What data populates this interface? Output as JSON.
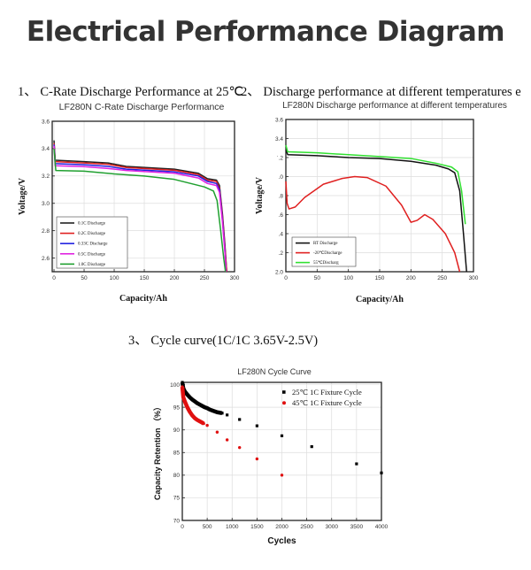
{
  "page_title": "Electrical Performance Diagram",
  "sections": [
    {
      "label": "1、 C-Rate Discharge Performance at 25℃"
    },
    {
      "label": "2、 Discharge performance at different temperatures e"
    },
    {
      "label": "3、 Cycle curve(1C/1C 3.65V-2.5V)"
    }
  ],
  "chart_data": [
    {
      "type": "line",
      "title": "LF280N C-Rate Discharge Performance",
      "xlabel": "Capacity/Ah",
      "ylabel": "Voltage/V",
      "xlim": [
        -3,
        300
      ],
      "ylim": [
        2.5,
        3.6
      ],
      "xticks": [
        "0",
        "50",
        "100",
        "150",
        "200",
        "250",
        "300"
      ],
      "xtick_values": [
        0,
        50,
        100,
        150,
        200,
        250,
        300
      ],
      "yticks": [
        "2.6",
        "2.8",
        "3.0",
        "3.2",
        "3.4",
        "3.6"
      ],
      "ytick_values": [
        2.6,
        2.8,
        3.0,
        3.2,
        3.4,
        3.6
      ],
      "grid": true,
      "legend_placement": "bottom-left",
      "series": [
        {
          "name": "0.1C  Discharge",
          "color": "#222222",
          "points": [
            [
              0,
              3.46
            ],
            [
              2,
              3.315
            ],
            [
              50,
              3.305
            ],
            [
              90,
              3.295
            ],
            [
              120,
              3.27
            ],
            [
              200,
              3.25
            ],
            [
              240,
              3.22
            ],
            [
              255,
              3.18
            ],
            [
              270,
              3.17
            ],
            [
              275,
              3.13
            ],
            [
              280,
              2.92
            ],
            [
              284,
              2.7
            ],
            [
              287,
              2.5
            ]
          ]
        },
        {
          "name": "0.2C  Discharge",
          "color": "#e02020",
          "points": [
            [
              0,
              3.44
            ],
            [
              2,
              3.305
            ],
            [
              50,
              3.295
            ],
            [
              90,
              3.285
            ],
            [
              120,
              3.262
            ],
            [
              200,
              3.242
            ],
            [
              240,
              3.21
            ],
            [
              255,
              3.17
            ],
            [
              270,
              3.16
            ],
            [
              275,
              3.11
            ],
            [
              280,
              2.9
            ],
            [
              284,
              2.68
            ],
            [
              287,
              2.5
            ]
          ]
        },
        {
          "name": "0.33C  Discharge",
          "color": "#2020e0",
          "points": [
            [
              0,
              3.43
            ],
            [
              2,
              3.29
            ],
            [
              50,
              3.282
            ],
            [
              90,
              3.27
            ],
            [
              120,
              3.25
            ],
            [
              200,
              3.23
            ],
            [
              240,
              3.2
            ],
            [
              255,
              3.16
            ],
            [
              270,
              3.145
            ],
            [
              275,
              3.1
            ],
            [
              280,
              2.88
            ],
            [
              284,
              2.66
            ],
            [
              286,
              2.5
            ]
          ]
        },
        {
          "name": "0.5C  Discharge",
          "color": "#e020e0",
          "points": [
            [
              0,
              3.42
            ],
            [
              2,
              3.275
            ],
            [
              50,
              3.268
            ],
            [
              90,
              3.255
            ],
            [
              120,
              3.24
            ],
            [
              200,
              3.22
            ],
            [
              240,
              3.185
            ],
            [
              255,
              3.145
            ],
            [
              270,
              3.13
            ],
            [
              275,
              3.08
            ],
            [
              280,
              2.86
            ],
            [
              284,
              2.64
            ],
            [
              286,
              2.5
            ]
          ]
        },
        {
          "name": "1.0C  Discharge",
          "color": "#20a030",
          "points": [
            [
              0,
              3.4
            ],
            [
              3,
              3.24
            ],
            [
              50,
              3.235
            ],
            [
              100,
              3.215
            ],
            [
              150,
              3.2
            ],
            [
              200,
              3.175
            ],
            [
              250,
              3.12
            ],
            [
              265,
              3.09
            ],
            [
              271,
              3.02
            ],
            [
              277,
              2.8
            ],
            [
              282,
              2.6
            ],
            [
              285,
              2.5
            ]
          ]
        }
      ]
    },
    {
      "type": "line",
      "title": "LF280N Discharge performance at different temperatures",
      "xlabel": "Capacity/Ah",
      "ylabel": "Voltage/V",
      "xlim": [
        0,
        300
      ],
      "ylim": [
        2.0,
        3.6
      ],
      "xticks": [
        "0",
        "50",
        "100",
        "150",
        "200",
        "250",
        "300"
      ],
      "xtick_values": [
        0,
        50,
        100,
        150,
        200,
        250,
        300
      ],
      "yticks": [
        "2.0",
        ".2",
        ".4",
        ".6",
        ".8",
        ".0",
        "ˈ.2",
        "3.4",
        "3.6"
      ],
      "ytick_values": [
        2.0,
        2.2,
        2.4,
        2.6,
        2.8,
        3.0,
        3.2,
        3.4,
        3.6
      ],
      "grid": true,
      "legend_placement": "bottom-left",
      "series": [
        {
          "name": "RT Discharge",
          "color": "#111111",
          "points": [
            [
              0,
              3.28
            ],
            [
              3,
              3.23
            ],
            [
              50,
              3.22
            ],
            [
              100,
              3.2
            ],
            [
              150,
              3.19
            ],
            [
              200,
              3.16
            ],
            [
              240,
              3.12
            ],
            [
              260,
              3.08
            ],
            [
              270,
              3.04
            ],
            [
              278,
              2.85
            ],
            [
              284,
              2.4
            ],
            [
              289,
              2.0
            ]
          ]
        },
        {
          "name": "-20℃Discharge",
          "color": "#e02020",
          "points": [
            [
              0,
              2.95
            ],
            [
              2,
              2.72
            ],
            [
              5,
              2.66
            ],
            [
              15,
              2.68
            ],
            [
              30,
              2.78
            ],
            [
              60,
              2.92
            ],
            [
              90,
              2.98
            ],
            [
              110,
              3.0
            ],
            [
              130,
              2.99
            ],
            [
              160,
              2.9
            ],
            [
              185,
              2.7
            ],
            [
              200,
              2.52
            ],
            [
              210,
              2.54
            ],
            [
              222,
              2.6
            ],
            [
              235,
              2.55
            ],
            [
              255,
              2.4
            ],
            [
              270,
              2.2
            ],
            [
              278,
              2.0
            ]
          ]
        },
        {
          "name": "55℃Discharg",
          "color": "#30e030",
          "points": [
            [
              0,
              3.33
            ],
            [
              3,
              3.26
            ],
            [
              50,
              3.25
            ],
            [
              100,
              3.23
            ],
            [
              150,
              3.21
            ],
            [
              200,
              3.19
            ],
            [
              240,
              3.14
            ],
            [
              265,
              3.1
            ],
            [
              275,
              3.05
            ],
            [
              281,
              2.85
            ],
            [
              287,
              2.5
            ]
          ]
        }
      ]
    },
    {
      "type": "scatter",
      "title": "LF280N Cycle Curve",
      "xlabel": "Cycles",
      "ylabel": "Capacity Retention （%）",
      "xlim": [
        0,
        4000
      ],
      "ylim": [
        70,
        100.5
      ],
      "xticks": [
        "0",
        "500",
        "1000",
        "1500",
        "2000",
        "2500",
        "3000",
        "3500",
        "4000"
      ],
      "xtick_values": [
        0,
        500,
        1000,
        1500,
        2000,
        2500,
        3000,
        3500,
        4000
      ],
      "yticks": [
        "70",
        "75",
        "80",
        "85",
        "90",
        "95",
        "100"
      ],
      "ytick_values": [
        70,
        75,
        80,
        85,
        90,
        95,
        100
      ],
      "grid": true,
      "legend_placement": "top-right",
      "series": [
        {
          "name": "25℃ 1C Fixture Cycle",
          "color": "#000000",
          "marker": "square",
          "dense": [
            [
              0,
              100.5
            ],
            [
              20,
              99.2
            ],
            [
              50,
              98.5
            ],
            [
              100,
              97.8
            ],
            [
              150,
              97.2
            ],
            [
              200,
              96.7
            ],
            [
              250,
              96.3
            ],
            [
              300,
              95.9
            ],
            [
              350,
              95.6
            ],
            [
              400,
              95.3
            ],
            [
              450,
              95.0
            ],
            [
              500,
              94.8
            ],
            [
              550,
              94.5
            ],
            [
              600,
              94.3
            ],
            [
              650,
              94.1
            ],
            [
              700,
              93.9
            ],
            [
              750,
              93.8
            ],
            [
              800,
              93.7
            ]
          ],
          "points": [
            [
              900,
              93.3
            ],
            [
              1150,
              92.3
            ],
            [
              1500,
              90.9
            ],
            [
              2000,
              88.7
            ],
            [
              2600,
              86.3
            ],
            [
              3500,
              82.5
            ],
            [
              4000,
              80.5
            ]
          ]
        },
        {
          "name": "45℃ 1C Fixture Cycle",
          "color": "#e01010",
          "marker": "circle",
          "dense": [
            [
              0,
              99.5
            ],
            [
              20,
              97.2
            ],
            [
              50,
              96.3
            ],
            [
              100,
              95.0
            ],
            [
              150,
              94.0
            ],
            [
              200,
              93.2
            ],
            [
              250,
              92.6
            ],
            [
              300,
              92.2
            ],
            [
              350,
              91.9
            ],
            [
              400,
              91.6
            ],
            [
              430,
              91.4
            ]
          ],
          "points": [
            [
              500,
              91.0
            ],
            [
              700,
              89.5
            ],
            [
              900,
              87.8
            ],
            [
              1150,
              86.1
            ],
            [
              1500,
              83.6
            ],
            [
              2000,
              80.0
            ]
          ]
        }
      ]
    }
  ]
}
